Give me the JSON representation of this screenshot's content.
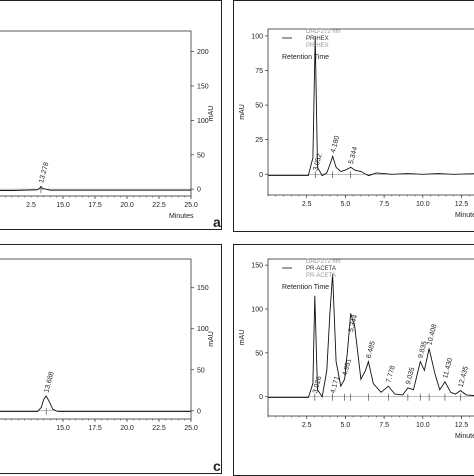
{
  "panels": [
    {
      "id": "a",
      "letter": "a",
      "unit_label": "mAU",
      "xlabel": "Minutes",
      "xlim": [
        10,
        25
      ],
      "ylim": [
        -10,
        230
      ],
      "x_ticks": [
        "15.0",
        "17.5",
        "20.0",
        "22.5",
        "25.0"
      ],
      "partial_x_tick": "2.5",
      "y_ticks_right": [
        "0",
        "50",
        "100",
        "150",
        "200"
      ],
      "peaks": [
        {
          "label": "13.278",
          "x": 13.278,
          "y": 4
        }
      ],
      "chart_data": {
        "type": "line",
        "x": [
          10,
          11,
          12,
          13,
          13.2,
          13.278,
          13.4,
          14,
          16,
          20,
          25
        ],
        "y": [
          -2,
          -2,
          -1.5,
          -1,
          2,
          4,
          1,
          -1.5,
          -1.5,
          -1.5,
          -1.5
        ],
        "xlabel": "Minutes",
        "ylabel": "mAU",
        "xlim": [
          10,
          25
        ],
        "ylim": [
          -10,
          230
        ]
      }
    },
    {
      "id": "b",
      "letter": "",
      "unit_label": "mAU",
      "xlabel": "Minutes",
      "legend": [
        "DAD-272 nm",
        "PR-HEX",
        "PR-HEX"
      ],
      "legend_sub": "Retention Time",
      "xlim": [
        0,
        13.5
      ],
      "ylim": [
        -15,
        105
      ],
      "x_ticks": [
        "2.5",
        "5.0",
        "7.5",
        "10.0",
        "12.5"
      ],
      "y_ticks_left": [
        "0",
        "25",
        "50",
        "75",
        "100"
      ],
      "peaks": [
        {
          "label": "3.052",
          "x": 3.052,
          "y": 0
        },
        {
          "label": "4.180",
          "x": 4.18,
          "y": 13
        },
        {
          "label": "5.344",
          "x": 5.344,
          "y": 5
        }
      ],
      "chart_data": {
        "type": "line",
        "x": [
          0,
          1,
          2,
          2.6,
          2.9,
          3.052,
          3.2,
          3.5,
          3.8,
          4.0,
          4.18,
          4.4,
          4.7,
          5.0,
          5.344,
          5.6,
          6.0,
          6.5,
          7,
          8,
          9,
          10,
          11,
          12,
          13.5
        ],
        "y": [
          -1,
          -1,
          -1,
          -1,
          12,
          100,
          5,
          -1,
          1,
          7,
          13,
          5,
          2,
          3,
          5,
          3,
          2,
          -1,
          1,
          0,
          0.5,
          0,
          0.5,
          0,
          0.5
        ],
        "xlabel": "Minutes",
        "ylabel": "mAU",
        "xlim": [
          0,
          13.5
        ],
        "ylim": [
          -15,
          105
        ]
      }
    },
    {
      "id": "c_left",
      "letter": "c",
      "unit_label": "mAU",
      "xlabel": "",
      "xlim": [
        10,
        25
      ],
      "ylim": [
        -10,
        185
      ],
      "x_ticks": [
        "15.0",
        "17.5",
        "20.0",
        "22.5",
        "25.0"
      ],
      "partial_x_tick": "",
      "y_ticks_right": [
        "0",
        "50",
        "100",
        "150"
      ],
      "peaks": [
        {
          "label": "13.688",
          "x": 13.688,
          "y": 18
        }
      ],
      "chart_data": {
        "type": "line",
        "x": [
          10,
          12,
          13,
          13.3,
          13.5,
          13.688,
          13.9,
          14.2,
          14.6,
          16,
          20,
          25
        ],
        "y": [
          -1,
          -1,
          -1,
          4,
          14,
          18,
          12,
          2,
          -1,
          -1,
          -1,
          -1
        ],
        "xlabel": "",
        "ylabel": "mAU",
        "xlim": [
          10,
          25
        ],
        "ylim": [
          -10,
          185
        ]
      }
    },
    {
      "id": "d",
      "letter": "",
      "unit_label": "mAU",
      "xlabel": "Minutes",
      "legend": [
        "DAD-272 nm",
        "PR-ACETA",
        "PR-ACETA"
      ],
      "legend_sub": "Retention Time",
      "xlim": [
        0,
        13.5
      ],
      "ylim": [
        -22,
        157
      ],
      "x_ticks": [
        "2.5",
        "5.0",
        "7.5",
        "10.0",
        "12.5"
      ],
      "y_ticks_left": [
        "0",
        "50",
        "100",
        "150"
      ],
      "peaks": [
        {
          "label": "3.026",
          "x": 3.026,
          "y": 0
        },
        {
          "label": "4.171",
          "x": 4.171,
          "y": 0
        },
        {
          "label": "4.951",
          "x": 4.951,
          "y": 20
        },
        {
          "label": "5.344",
          "x": 5.344,
          "y": 70
        },
        {
          "label": "6.485",
          "x": 6.485,
          "y": 40
        },
        {
          "label": "7.778",
          "x": 7.778,
          "y": 12
        },
        {
          "label": "9.035",
          "x": 9.035,
          "y": 10
        },
        {
          "label": "9.835",
          "x": 9.835,
          "y": 40
        },
        {
          "label": "10.408",
          "x": 10.408,
          "y": 55
        },
        {
          "label": "11.430",
          "x": 11.43,
          "y": 17
        },
        {
          "label": "12.435",
          "x": 12.435,
          "y": 7
        }
      ],
      "chart_data": {
        "type": "line",
        "x": [
          0,
          1,
          2,
          2.6,
          2.9,
          3.026,
          3.2,
          3.5,
          3.8,
          4.0,
          4.171,
          4.4,
          4.7,
          4.951,
          5.15,
          5.344,
          5.6,
          6.0,
          6.3,
          6.485,
          6.8,
          7.3,
          7.778,
          8.2,
          8.7,
          9.035,
          9.4,
          9.835,
          10.1,
          10.408,
          10.8,
          11.1,
          11.43,
          11.8,
          12.1,
          12.435,
          12.8,
          13.5
        ],
        "y": [
          -1,
          -1,
          -1,
          -1,
          15,
          115,
          8,
          0,
          30,
          95,
          140,
          40,
          12,
          20,
          55,
          95,
          80,
          20,
          30,
          40,
          15,
          5,
          12,
          3,
          2,
          10,
          8,
          40,
          30,
          55,
          25,
          8,
          17,
          5,
          3,
          7,
          2,
          1
        ],
        "xlabel": "Minutes",
        "ylabel": "mAU",
        "xlim": [
          0,
          13.5
        ],
        "ylim": [
          -22,
          157
        ]
      }
    }
  ]
}
